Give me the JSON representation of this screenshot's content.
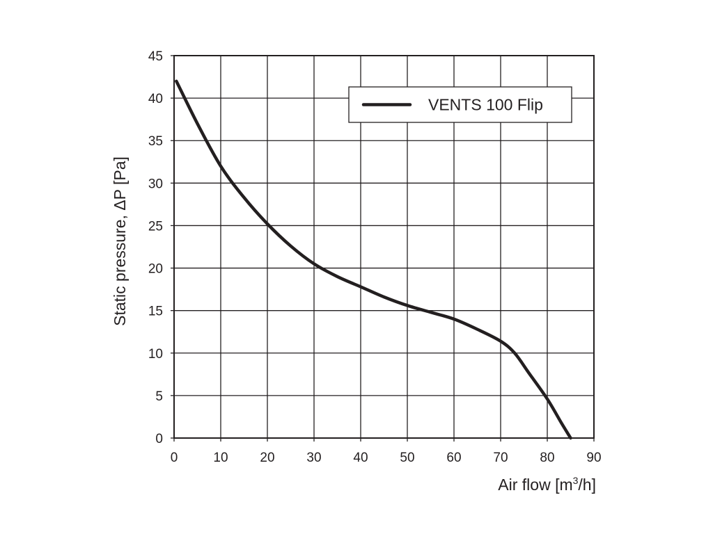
{
  "chart_data": {
    "type": "line",
    "title": "",
    "xlabel_main": "Air flow [m",
    "xlabel_sup": "3",
    "xlabel_tail": "/h]",
    "ylabel": "Static pressure, ΔP [Pa]",
    "xlim": [
      0,
      90
    ],
    "ylim": [
      0,
      45
    ],
    "x_ticks": [
      "0",
      "10",
      "20",
      "30",
      "40",
      "50",
      "60",
      "70",
      "80",
      "90"
    ],
    "y_ticks": [
      "0",
      "5",
      "10",
      "15",
      "20",
      "25",
      "30",
      "35",
      "40",
      "45"
    ],
    "grid": true,
    "legend_position": "top-right",
    "series": [
      {
        "name": "VENTS 100 Flip",
        "color": "#231f20",
        "x": [
          0.5,
          5,
          10,
          15,
          20,
          25,
          30,
          35,
          40,
          45,
          50,
          55,
          60,
          65,
          70,
          73,
          76,
          80,
          83,
          85
        ],
        "y": [
          42,
          37,
          32,
          28.3,
          25.2,
          22.6,
          20.5,
          19,
          17.8,
          16.6,
          15.6,
          14.8,
          14,
          12.8,
          11.4,
          10,
          7.7,
          4.6,
          1.8,
          0
        ]
      }
    ]
  }
}
